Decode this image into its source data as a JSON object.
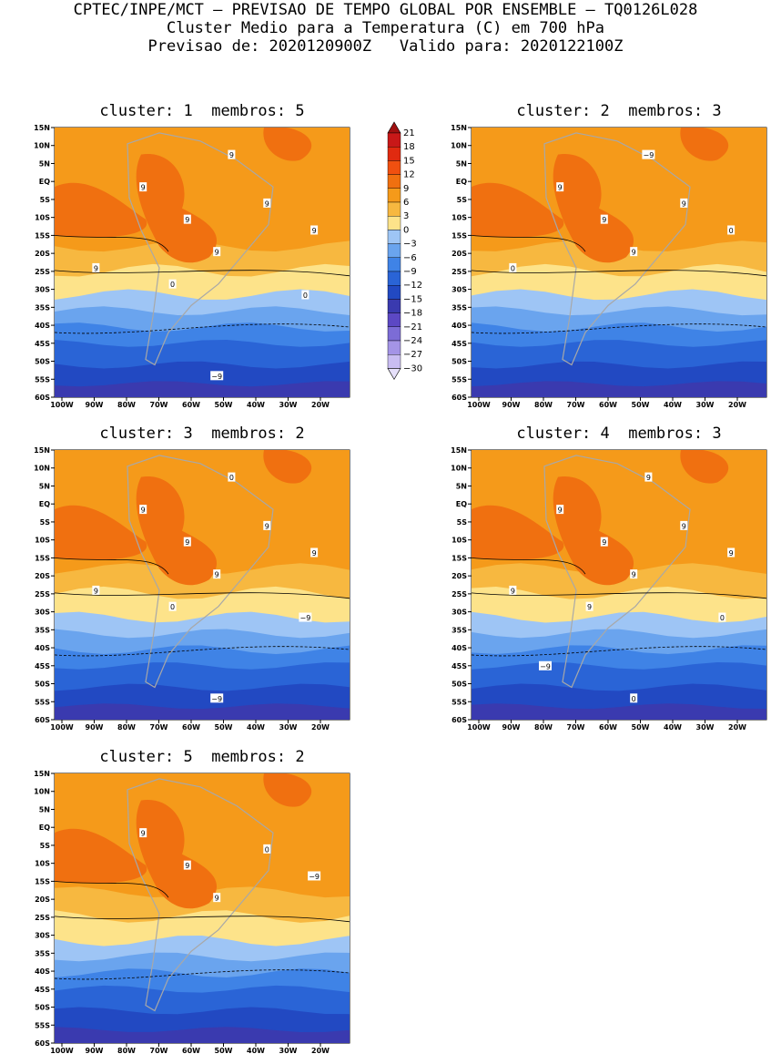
{
  "header": {
    "line1": "CPTEC/INPE/MCT – PREVISAO DE TEMPO GLOBAL POR ENSEMBLE – TQ0126L028",
    "line2": "Cluster Medio para a Temperatura (C) em 700 hPa",
    "line3": "Previsao de: 2020120900Z   Valido para: 2020122100Z"
  },
  "axes": {
    "lat_labels": [
      "15N",
      "10N",
      "5N",
      "EQ",
      "5S",
      "10S",
      "15S",
      "20S",
      "25S",
      "30S",
      "35S",
      "40S",
      "45S",
      "50S",
      "55S",
      "60S"
    ],
    "lon_labels": [
      "100W",
      "90W",
      "80W",
      "70W",
      "60W",
      "50W",
      "40W",
      "30W",
      "20W"
    ]
  },
  "colorbar": {
    "labels": [
      "21",
      "18",
      "15",
      "12",
      "9",
      "6",
      "3",
      "0",
      "−3",
      "−6",
      "−9",
      "−12",
      "−15",
      "−18",
      "−21",
      "−24",
      "−27",
      "−30"
    ],
    "colors": [
      "#a01010",
      "#c81818",
      "#e02a10",
      "#f05010",
      "#f07010",
      "#f59a1a",
      "#f7b840",
      "#fde38a",
      "#9ec5f5",
      "#6aa4ee",
      "#3f83e6",
      "#2a64d6",
      "#2249c2",
      "#3a3aaf",
      "#5c48c4",
      "#7c6cd6",
      "#a494e6",
      "#c9bdf2",
      "#e6e0fa"
    ]
  },
  "panels": [
    {
      "label": "cluster: 1  membros: 5",
      "contours": [
        "9",
        "9",
        "9",
        "9",
        "9",
        "9",
        "9",
        "0",
        "0",
        "−9"
      ]
    },
    {
      "label": "cluster: 2  membros: 3",
      "contours": [
        "9",
        "9",
        "9",
        "9",
        "0",
        "0",
        "−9"
      ]
    },
    {
      "label": "cluster: 3  membros: 2",
      "contours": [
        "9",
        "9",
        "9",
        "9",
        "9",
        "9",
        "0",
        "0",
        "−9",
        "−9"
      ]
    },
    {
      "label": "cluster: 4  membros: 3",
      "contours": [
        "9",
        "9",
        "9",
        "9",
        "9",
        "9",
        "9",
        "9",
        "0",
        "0",
        "−9"
      ]
    },
    {
      "label": "cluster: 5  membros: 2",
      "contours": [
        "9",
        "9",
        "9",
        "0",
        "−9"
      ]
    }
  ]
}
